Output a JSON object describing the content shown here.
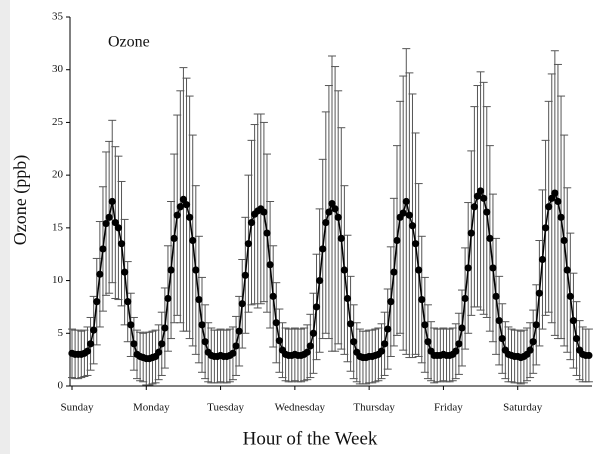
{
  "chart_data": {
    "type": "errorbar",
    "xlabel": "Hour of the Week",
    "ylabel": "Ozone (ppb)",
    "x": [
      0,
      1,
      2,
      3,
      4,
      5,
      6,
      7,
      8,
      9,
      10,
      11,
      12,
      13,
      14,
      15,
      16,
      17,
      18,
      19,
      20,
      21,
      22,
      23,
      24,
      25,
      26,
      27,
      28,
      29,
      30,
      31,
      32,
      33,
      34,
      35,
      36,
      37,
      38,
      39,
      40,
      41,
      42,
      43,
      44,
      45,
      46,
      47,
      48,
      49,
      50,
      51,
      52,
      53,
      54,
      55,
      56,
      57,
      58,
      59,
      60,
      61,
      62,
      63,
      64,
      65,
      66,
      67,
      68,
      69,
      70,
      71,
      72,
      73,
      74,
      75,
      76,
      77,
      78,
      79,
      80,
      81,
      82,
      83,
      84,
      85,
      86,
      87,
      88,
      89,
      90,
      91,
      92,
      93,
      94,
      95,
      96,
      97,
      98,
      99,
      100,
      101,
      102,
      103,
      104,
      105,
      106,
      107,
      108,
      109,
      110,
      111,
      112,
      113,
      114,
      115,
      116,
      117,
      118,
      119,
      120,
      121,
      122,
      123,
      124,
      125,
      126,
      127,
      128,
      129,
      130,
      131,
      132,
      133,
      134,
      135,
      136,
      137,
      138,
      139,
      140,
      141,
      142,
      143,
      144,
      145,
      146,
      147,
      148,
      149,
      150,
      151,
      152,
      153,
      154,
      155,
      156,
      157,
      158,
      159,
      160,
      161,
      162,
      163,
      164,
      165,
      166,
      167
    ],
    "series": [
      {
        "name": "Ozone",
        "color": "#000000",
        "error_color": "#555555",
        "values": [
          3.1,
          3.0,
          3.0,
          3.0,
          3.1,
          3.3,
          4.0,
          5.3,
          8.0,
          10.6,
          13.0,
          15.4,
          16.0,
          17.5,
          15.5,
          15.0,
          13.5,
          10.8,
          8.0,
          5.8,
          4.0,
          3.0,
          2.8,
          2.7,
          2.6,
          2.6,
          2.7,
          2.8,
          3.2,
          4.0,
          5.5,
          8.3,
          11.0,
          14.0,
          16.2,
          17.0,
          17.7,
          17.2,
          16.0,
          13.8,
          11.0,
          8.2,
          5.8,
          4.2,
          3.2,
          2.9,
          2.8,
          2.8,
          2.9,
          2.8,
          2.8,
          2.9,
          3.1,
          3.8,
          5.2,
          7.8,
          10.5,
          13.5,
          15.5,
          16.3,
          16.6,
          16.8,
          16.5,
          14.5,
          11.5,
          8.5,
          6.0,
          4.3,
          3.4,
          3.0,
          2.9,
          2.9,
          3.0,
          2.9,
          2.9,
          3.0,
          3.2,
          3.8,
          5.0,
          7.5,
          10.0,
          13.0,
          15.5,
          16.5,
          17.3,
          16.8,
          16.0,
          14.0,
          11.0,
          8.3,
          5.9,
          4.2,
          3.2,
          2.8,
          2.7,
          2.7,
          2.8,
          2.8,
          2.9,
          3.0,
          3.3,
          4.0,
          5.4,
          8.0,
          10.8,
          13.8,
          16.0,
          16.4,
          17.5,
          16.2,
          15.2,
          13.5,
          11.0,
          8.2,
          5.8,
          4.2,
          3.3,
          2.9,
          2.9,
          2.9,
          3.0,
          2.9,
          2.9,
          3.0,
          3.3,
          4.0,
          5.5,
          8.3,
          11.2,
          14.5,
          17.0,
          18.0,
          18.5,
          17.8,
          16.5,
          14.0,
          11.2,
          8.5,
          6.2,
          4.5,
          3.4,
          3.0,
          2.9,
          2.8,
          2.8,
          2.7,
          2.8,
          3.0,
          3.4,
          4.2,
          5.8,
          8.8,
          12.0,
          15.0,
          17.0,
          17.8,
          18.3,
          17.5,
          16.0,
          13.8,
          11.0,
          8.5,
          6.2,
          4.5,
          3.4,
          3.0,
          2.9,
          2.9
        ],
        "error": [
          2.3,
          2.3,
          2.3,
          2.2,
          2.2,
          2.3,
          2.5,
          3.2,
          4.1,
          5.0,
          5.9,
          6.8,
          7.2,
          7.7,
          7.2,
          6.8,
          5.9,
          5.0,
          3.8,
          3.0,
          2.5,
          2.3,
          2.3,
          2.3,
          2.5,
          2.5,
          2.5,
          2.5,
          2.6,
          3.0,
          3.8,
          5.0,
          6.5,
          8.0,
          9.5,
          11.0,
          12.5,
          12.0,
          11.5,
          10.0,
          8.0,
          6.0,
          4.5,
          3.5,
          2.8,
          2.6,
          2.5,
          2.5,
          2.5,
          2.5,
          2.5,
          2.5,
          2.5,
          2.8,
          3.3,
          4.2,
          5.5,
          6.5,
          7.8,
          8.5,
          9.2,
          9.0,
          8.5,
          7.5,
          6.0,
          4.8,
          3.8,
          3.0,
          2.6,
          2.5,
          2.5,
          2.5,
          2.5,
          2.5,
          2.5,
          2.5,
          2.6,
          3.0,
          3.8,
          5.0,
          6.8,
          8.5,
          10.5,
          12.0,
          14.0,
          13.5,
          12.0,
          10.5,
          8.0,
          6.0,
          4.5,
          3.5,
          2.8,
          2.6,
          2.5,
          2.5,
          2.5,
          2.5,
          2.5,
          2.5,
          2.6,
          3.0,
          3.8,
          5.2,
          7.0,
          9.0,
          11.0,
          13.0,
          14.5,
          13.5,
          12.5,
          10.5,
          8.2,
          6.0,
          4.5,
          3.5,
          2.8,
          2.6,
          2.5,
          2.5,
          2.5,
          2.5,
          2.5,
          2.5,
          2.6,
          2.9,
          3.6,
          4.8,
          6.2,
          7.8,
          9.5,
          10.5,
          11.3,
          11.0,
          10.0,
          8.8,
          7.0,
          5.5,
          4.2,
          3.3,
          2.7,
          2.6,
          2.5,
          2.5,
          2.5,
          2.5,
          2.5,
          2.5,
          2.6,
          3.0,
          3.8,
          5.0,
          6.6,
          8.3,
          10.0,
          11.8,
          13.5,
          13.0,
          11.5,
          10.0,
          7.8,
          6.0,
          4.5,
          3.5,
          2.8,
          2.6,
          2.5,
          2.5
        ]
      }
    ],
    "xlim": [
      0,
      168
    ],
    "xticks": [
      {
        "value": 0,
        "label": "Sunday"
      },
      {
        "value": 24,
        "label": "Monday"
      },
      {
        "value": 48,
        "label": "Tuesday"
      },
      {
        "value": 72,
        "label": "Wednesday"
      },
      {
        "value": 96,
        "label": "Thursday"
      },
      {
        "value": 120,
        "label": "Friday"
      },
      {
        "value": 144,
        "label": "Saturday"
      }
    ],
    "ylim": [
      0,
      35
    ],
    "yticks": [
      0,
      5,
      10,
      15,
      20,
      25,
      30,
      35
    ]
  }
}
